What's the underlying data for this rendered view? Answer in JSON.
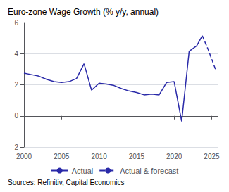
{
  "chart_data": {
    "type": "line",
    "title": "Euro-zone Wage Growth (% y/y, annual)",
    "annotation": "Sources: Refinitiv, Capital Economics",
    "xlim": [
      2000,
      2025.8
    ],
    "xticks": [
      2000,
      2005,
      2010,
      2015,
      2020,
      2025
    ],
    "ylim": [
      -2,
      6
    ],
    "yticks": [
      -2,
      0,
      2,
      4,
      6
    ],
    "grid": true,
    "legend": "bottom",
    "series": [
      {
        "name": "Actual",
        "color": "#2929a8",
        "line_style": "solid",
        "x": [
          2000,
          2001,
          2002,
          2003,
          2004,
          2005,
          2006,
          2007,
          2008,
          2009,
          2010,
          2011,
          2012,
          2013,
          2014,
          2015,
          2016,
          2017,
          2018,
          2019,
          2020,
          2021,
          2022,
          2023,
          2023.75
        ],
        "values": [
          2.75,
          2.65,
          2.55,
          2.35,
          2.2,
          2.15,
          2.2,
          2.4,
          3.35,
          1.65,
          2.1,
          2.05,
          1.95,
          1.75,
          1.6,
          1.5,
          1.35,
          1.4,
          1.35,
          2.15,
          2.2,
          -0.35,
          4.15,
          4.5,
          5.15
        ]
      },
      {
        "name": "Actual & forecast",
        "color": "#2929a8",
        "line_style": "dashed",
        "x": [
          2023.75,
          2024.5,
          2025.5
        ],
        "values": [
          5.15,
          4.3,
          3.0
        ]
      }
    ]
  }
}
